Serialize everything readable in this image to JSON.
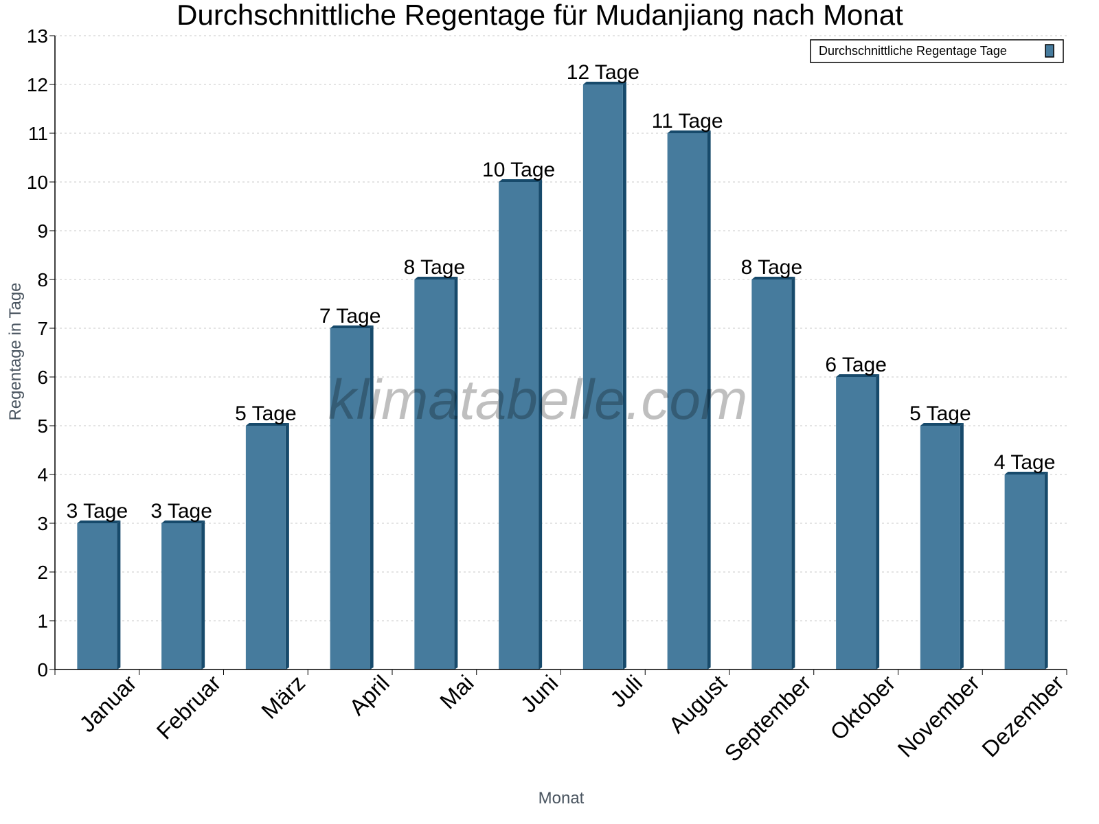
{
  "chart_data": {
    "type": "bar",
    "title": "Durchschnittliche Regentage für Mudanjiang nach Monat",
    "xlabel": "Monat",
    "ylabel": "Regentage in Tage",
    "ylim": [
      0,
      13
    ],
    "yticks": [
      "0",
      "1",
      "2",
      "3",
      "4",
      "5",
      "6",
      "7",
      "8",
      "9",
      "10",
      "11",
      "12",
      "13"
    ],
    "grid": true,
    "legend_position": "top-right",
    "categories": [
      "Januar",
      "Februar",
      "März",
      "April",
      "Mai",
      "Juni",
      "Juli",
      "August",
      "September",
      "Oktober",
      "November",
      "Dezember"
    ],
    "series": [
      {
        "name": "Durchschnittliche Regentage Tage",
        "values": [
          3,
          3,
          5,
          7,
          8,
          10,
          12,
          11,
          8,
          6,
          5,
          4
        ],
        "color": "#467b9d",
        "side_color": "#174a6b"
      }
    ],
    "data_labels": [
      "3 Tage",
      "3 Tage",
      "5 Tage",
      "7 Tage",
      "8 Tage",
      "10 Tage",
      "12 Tage",
      "11 Tage",
      "8 Tage",
      "6 Tage",
      "5 Tage",
      "4 Tage"
    ],
    "watermark": "klimatabelle.com"
  }
}
